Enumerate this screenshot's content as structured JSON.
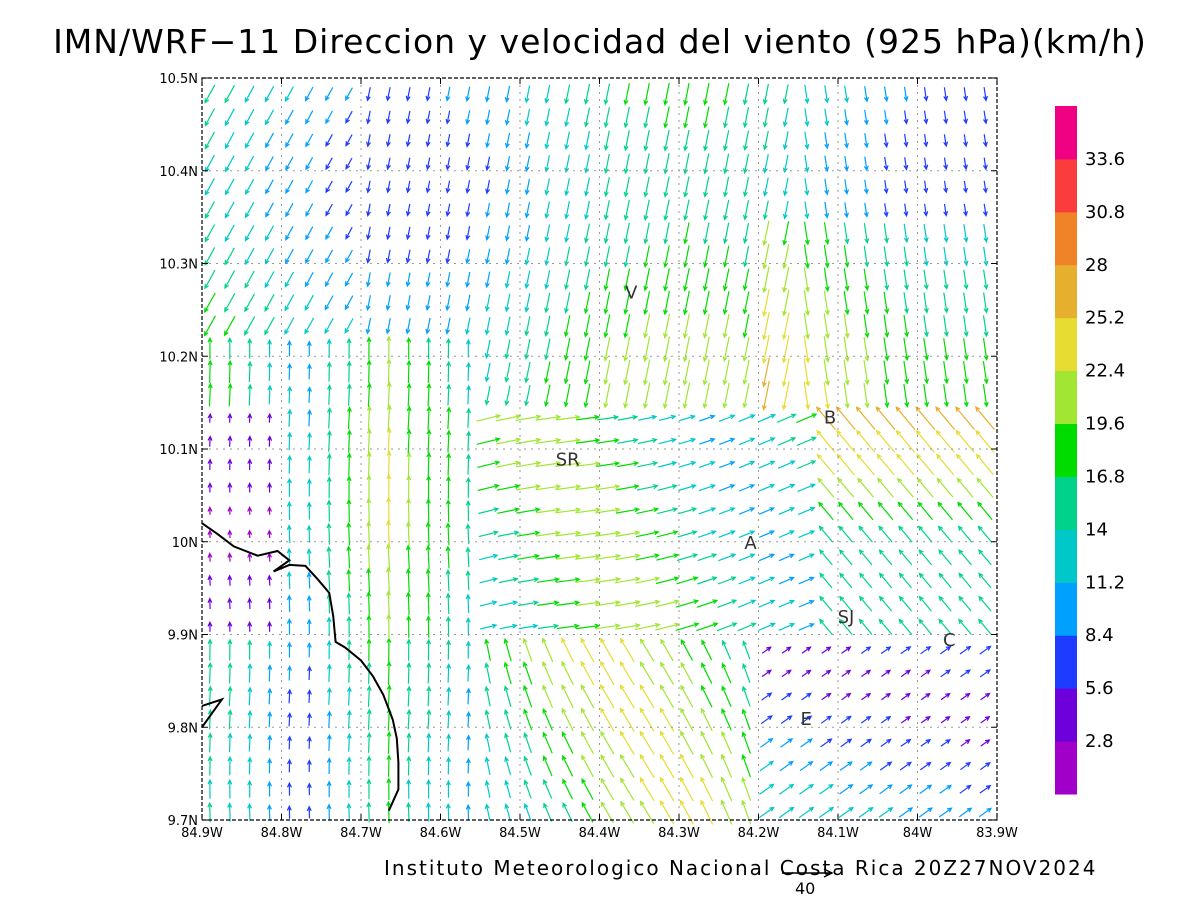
{
  "title": "IMN/WRF−11 Direccion y velocidad del viento (925 hPa)(km/h)",
  "credit": "Instituto Meteorologico Nacional Costa Rica 20Z27NOV2024",
  "reference_vector": {
    "value": 40,
    "label": "40"
  },
  "map": {
    "lon_range": [
      -84.9,
      -83.9
    ],
    "lat_range": [
      9.7,
      10.5
    ],
    "lon_ticks": [
      {
        "value": -84.9,
        "label": "84.9W"
      },
      {
        "value": -84.8,
        "label": "84.8W"
      },
      {
        "value": -84.7,
        "label": "84.7W"
      },
      {
        "value": -84.6,
        "label": "84.6W"
      },
      {
        "value": -84.5,
        "label": "84.5W"
      },
      {
        "value": -84.4,
        "label": "84.4W"
      },
      {
        "value": -84.3,
        "label": "84.3W"
      },
      {
        "value": -84.2,
        "label": "84.2W"
      },
      {
        "value": -84.1,
        "label": "84.1W"
      },
      {
        "value": -84.0,
        "label": "84W"
      },
      {
        "value": -83.9,
        "label": "83.9W"
      }
    ],
    "lat_ticks": [
      {
        "value": 9.7,
        "label": "9.7N"
      },
      {
        "value": 9.8,
        "label": "9.8N"
      },
      {
        "value": 9.9,
        "label": "9.9N"
      },
      {
        "value": 10.0,
        "label": "10N"
      },
      {
        "value": 10.1,
        "label": "10.1N"
      },
      {
        "value": 10.2,
        "label": "10.2N"
      },
      {
        "value": 10.3,
        "label": "10.3N"
      },
      {
        "value": 10.4,
        "label": "10.4N"
      },
      {
        "value": 10.5,
        "label": "10.5N"
      }
    ],
    "grid": true,
    "places": [
      {
        "label": "V",
        "lon": -84.36,
        "lat": 10.27
      },
      {
        "label": "SR",
        "lon": -84.44,
        "lat": 10.09
      },
      {
        "label": "B",
        "lon": -84.11,
        "lat": 10.135
      },
      {
        "label": "A",
        "lon": -84.21,
        "lat": 10.0
      },
      {
        "label": "SJ",
        "lon": -84.09,
        "lat": 9.92
      },
      {
        "label": "C",
        "lon": -83.96,
        "lat": 9.895
      },
      {
        "label": "E",
        "lon": -84.14,
        "lat": 9.81
      }
    ],
    "coastline": [
      [
        [
          -84.9,
          10.02
        ],
        [
          -84.88,
          10.008
        ],
        [
          -84.86,
          9.995
        ],
        [
          -84.83,
          9.985
        ],
        [
          -84.805,
          9.99
        ],
        [
          -84.79,
          9.98
        ],
        [
          -84.81,
          9.968
        ],
        [
          -84.79,
          9.975
        ],
        [
          -84.77,
          9.974
        ],
        [
          -84.755,
          9.96
        ],
        [
          -84.74,
          9.945
        ],
        [
          -84.735,
          9.92
        ],
        [
          -84.732,
          9.892
        ],
        [
          -84.72,
          9.886
        ],
        [
          -84.7,
          9.872
        ],
        [
          -84.685,
          9.855
        ],
        [
          -84.672,
          9.835
        ],
        [
          -84.66,
          9.808
        ],
        [
          -84.655,
          9.788
        ],
        [
          -84.653,
          9.762
        ],
        [
          -84.653,
          9.733
        ],
        [
          -84.665,
          9.71
        ]
      ],
      [
        [
          -84.9,
          9.8
        ],
        [
          -84.885,
          9.818
        ],
        [
          -84.875,
          9.83
        ],
        [
          -84.9,
          9.823
        ]
      ]
    ]
  },
  "colorbar": {
    "levels": [
      "2.8",
      "5.6",
      "8.4",
      "11.2",
      "14",
      "16.8",
      "19.6",
      "22.4",
      "25.2",
      "28",
      "30.8",
      "33.6"
    ],
    "colors": [
      "#a000c8",
      "#6e00dc",
      "#1e3cff",
      "#00a0ff",
      "#00c8c8",
      "#00d28c",
      "#00dc00",
      "#a0e632",
      "#e6dc32",
      "#e6af2d",
      "#f08228",
      "#fa3c3c",
      "#f00082"
    ]
  },
  "chart_data": {
    "type": "vector-field",
    "title": "IMN/WRF−11 Direccion y velocidad del viento (925 hPa)(km/h)",
    "xlim": [
      -84.9,
      -83.9
    ],
    "ylim": [
      9.7,
      10.5
    ],
    "x_spacing": 0.025,
    "y_spacing": 0.025,
    "speed_levels": [
      2.8,
      5.6,
      8.4,
      11.2,
      14,
      16.8,
      19.6,
      22.4,
      25.2,
      28,
      30.8,
      33.6
    ],
    "reference_vector_kmh": 40
  }
}
